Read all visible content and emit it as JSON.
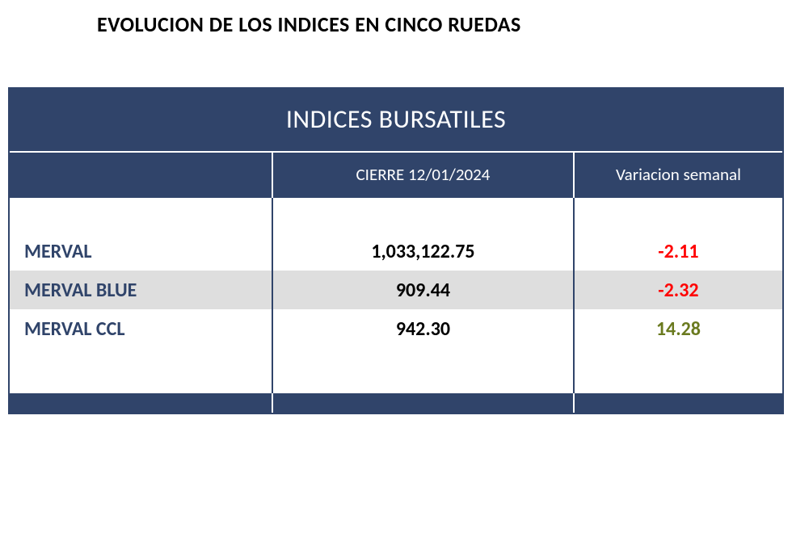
{
  "page_title": "EVOLUCION DE LOS INDICES EN CINCO RUEDAS",
  "table": {
    "type": "table",
    "title": "INDICES BURSATILES",
    "title_bg": "#30446a",
    "title_color": "#ffffff",
    "title_fontsize": 32,
    "header_bg": "#30446a",
    "header_color": "#ffffff",
    "header_fontsize": 21,
    "border_color": "#30446a",
    "inner_border_color": "#ffffff",
    "name_color": "#30446a",
    "close_color": "#000000",
    "data_fontsize": 24,
    "row_alt_bg": "#dedede",
    "row_bg": "#ffffff",
    "neg_color": "#ff0000",
    "pos_color": "#6a7a1f",
    "column_widths_pct": [
      34,
      39,
      27
    ],
    "columns": [
      "",
      "CIERRE 12/01/2024",
      "Variacion semanal"
    ],
    "rows": [
      {
        "name": "MERVAL",
        "close": "1,033,122.75",
        "var": "-2.11",
        "var_sign": "neg",
        "bg": "#ffffff"
      },
      {
        "name": "MERVAL BLUE",
        "close": "909.44",
        "var": "-2.32",
        "var_sign": "neg",
        "bg": "#dedede"
      },
      {
        "name": "MERVAL CCL",
        "close": "942.30",
        "var": "14.28",
        "var_sign": "pos",
        "bg": "#ffffff"
      }
    ]
  }
}
